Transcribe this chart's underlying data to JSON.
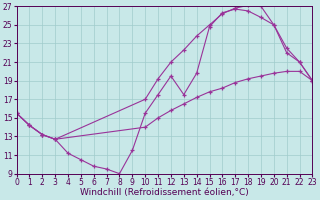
{
  "xlabel": "Windchill (Refroidissement éolien,°C)",
  "bg_color": "#c8e8e8",
  "line_color": "#993399",
  "grid_color": "#a0cccc",
  "xlim": [
    0,
    23
  ],
  "ylim": [
    9,
    27
  ],
  "xticks": [
    0,
    1,
    2,
    3,
    4,
    5,
    6,
    7,
    8,
    9,
    10,
    11,
    12,
    13,
    14,
    15,
    16,
    17,
    18,
    19,
    20,
    21,
    22,
    23
  ],
  "yticks": [
    9,
    11,
    13,
    15,
    17,
    19,
    21,
    23,
    25,
    27
  ],
  "line1": {
    "x": [
      0,
      1,
      2,
      3,
      4,
      5,
      6,
      7,
      8,
      9,
      10,
      11,
      12,
      13,
      14,
      15,
      16,
      17,
      18,
      19,
      20,
      21,
      22,
      23
    ],
    "y": [
      15.5,
      14.2,
      13.2,
      12.7,
      11.2,
      10.5,
      9.8,
      9.5,
      9.0,
      11.5,
      15.5,
      17.5,
      19.5,
      17.5,
      19.8,
      24.8,
      26.3,
      26.7,
      26.5,
      25.8,
      25.0,
      22.5,
      21.0,
      19.0
    ]
  },
  "line2": {
    "x": [
      0,
      1,
      2,
      3,
      10,
      11,
      12,
      13,
      14,
      15,
      16,
      17,
      18,
      19,
      20,
      21,
      22,
      23
    ],
    "y": [
      15.5,
      14.2,
      13.2,
      12.7,
      17.0,
      19.2,
      21.0,
      22.3,
      23.8,
      25.0,
      26.2,
      26.8,
      27.1,
      27.0,
      25.0,
      22.0,
      21.0,
      19.0
    ]
  },
  "line3": {
    "x": [
      0,
      1,
      2,
      3,
      10,
      11,
      12,
      13,
      14,
      15,
      16,
      17,
      18,
      19,
      20,
      21,
      22,
      23
    ],
    "y": [
      15.5,
      14.2,
      13.2,
      12.7,
      14.0,
      15.0,
      15.8,
      16.5,
      17.2,
      17.8,
      18.2,
      18.8,
      19.2,
      19.5,
      19.8,
      20.0,
      20.0,
      19.0
    ]
  },
  "tick_fontsize": 5.5,
  "label_fontsize": 6.5
}
